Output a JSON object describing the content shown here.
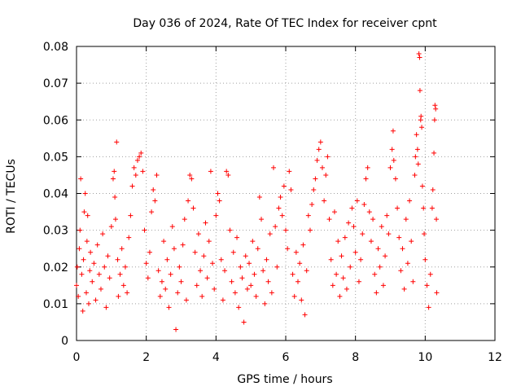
{
  "chart_data": {
    "type": "scatter",
    "title": "Day 036 of 2024, Rate Of TEC Index for receiver cpnt",
    "xlabel": "GPS time / hours",
    "ylabel": "ROTI / TECUs",
    "xlim": [
      0,
      12
    ],
    "ylim": [
      0,
      0.08
    ],
    "x_ticks": [
      "0",
      "2",
      "4",
      "6",
      "8",
      "10",
      "12"
    ],
    "y_ticks": [
      "0",
      "0.01",
      "0.02",
      "0.03",
      "0.04",
      "0.05",
      "0.06",
      "0.07",
      "0.08"
    ],
    "grid": true,
    "marker": "+",
    "color": "#ff0000",
    "series": [
      {
        "name": "ROTI",
        "points": [
          [
            0.0,
            0.015
          ],
          [
            0.02,
            0.02
          ],
          [
            0.05,
            0.012
          ],
          [
            0.08,
            0.025
          ],
          [
            0.1,
            0.03
          ],
          [
            0.12,
            0.044
          ],
          [
            0.15,
            0.018
          ],
          [
            0.18,
            0.008
          ],
          [
            0.2,
            0.022
          ],
          [
            0.22,
            0.035
          ],
          [
            0.25,
            0.04
          ],
          [
            0.28,
            0.013
          ],
          [
            0.3,
            0.027
          ],
          [
            0.32,
            0.034
          ],
          [
            0.35,
            0.01
          ],
          [
            0.38,
            0.019
          ],
          [
            0.4,
            0.024
          ],
          [
            0.45,
            0.016
          ],
          [
            0.5,
            0.021
          ],
          [
            0.55,
            0.011
          ],
          [
            0.6,
            0.026
          ],
          [
            0.65,
            0.018
          ],
          [
            0.7,
            0.014
          ],
          [
            0.75,
            0.029
          ],
          [
            0.8,
            0.02
          ],
          [
            0.85,
            0.009
          ],
          [
            0.9,
            0.023
          ],
          [
            0.95,
            0.017
          ],
          [
            1.0,
            0.031
          ],
          [
            1.05,
            0.044
          ],
          [
            1.08,
            0.046
          ],
          [
            1.1,
            0.039
          ],
          [
            1.12,
            0.033
          ],
          [
            1.15,
            0.054
          ],
          [
            1.18,
            0.022
          ],
          [
            1.2,
            0.012
          ],
          [
            1.25,
            0.018
          ],
          [
            1.3,
            0.025
          ],
          [
            1.35,
            0.015
          ],
          [
            1.4,
            0.02
          ],
          [
            1.45,
            0.013
          ],
          [
            1.5,
            0.028
          ],
          [
            1.55,
            0.034
          ],
          [
            1.6,
            0.042
          ],
          [
            1.65,
            0.047
          ],
          [
            1.7,
            0.045
          ],
          [
            1.75,
            0.049
          ],
          [
            1.8,
            0.05
          ],
          [
            1.85,
            0.051
          ],
          [
            1.9,
            0.046
          ],
          [
            1.95,
            0.03
          ],
          [
            2.0,
            0.021
          ],
          [
            2.05,
            0.017
          ],
          [
            2.1,
            0.024
          ],
          [
            2.15,
            0.035
          ],
          [
            2.2,
            0.041
          ],
          [
            2.25,
            0.038
          ],
          [
            2.3,
            0.045
          ],
          [
            2.35,
            0.019
          ],
          [
            2.4,
            0.012
          ],
          [
            2.45,
            0.016
          ],
          [
            2.5,
            0.027
          ],
          [
            2.55,
            0.014
          ],
          [
            2.6,
            0.022
          ],
          [
            2.65,
            0.009
          ],
          [
            2.7,
            0.018
          ],
          [
            2.75,
            0.031
          ],
          [
            2.8,
            0.025
          ],
          [
            2.85,
            0.003
          ],
          [
            2.9,
            0.013
          ],
          [
            2.95,
            0.02
          ],
          [
            3.0,
            0.016
          ],
          [
            3.05,
            0.026
          ],
          [
            3.1,
            0.033
          ],
          [
            3.15,
            0.011
          ],
          [
            3.2,
            0.038
          ],
          [
            3.25,
            0.045
          ],
          [
            3.3,
            0.044
          ],
          [
            3.35,
            0.036
          ],
          [
            3.4,
            0.024
          ],
          [
            3.45,
            0.015
          ],
          [
            3.5,
            0.029
          ],
          [
            3.55,
            0.019
          ],
          [
            3.6,
            0.012
          ],
          [
            3.65,
            0.023
          ],
          [
            3.7,
            0.032
          ],
          [
            3.75,
            0.017
          ],
          [
            3.8,
            0.027
          ],
          [
            3.85,
            0.046
          ],
          [
            3.9,
            0.021
          ],
          [
            3.95,
            0.014
          ],
          [
            4.0,
            0.034
          ],
          [
            4.05,
            0.04
          ],
          [
            4.1,
            0.038
          ],
          [
            4.15,
            0.022
          ],
          [
            4.2,
            0.011
          ],
          [
            4.25,
            0.019
          ],
          [
            4.3,
            0.046
          ],
          [
            4.35,
            0.045
          ],
          [
            4.4,
            0.03
          ],
          [
            4.45,
            0.016
          ],
          [
            4.5,
            0.024
          ],
          [
            4.55,
            0.013
          ],
          [
            4.6,
            0.028
          ],
          [
            4.65,
            0.009
          ],
          [
            4.7,
            0.02
          ],
          [
            4.75,
            0.017
          ],
          [
            4.8,
            0.005
          ],
          [
            4.85,
            0.023
          ],
          [
            4.9,
            0.014
          ],
          [
            4.95,
            0.021
          ],
          [
            5.0,
            0.015
          ],
          [
            5.05,
            0.027
          ],
          [
            5.1,
            0.018
          ],
          [
            5.15,
            0.012
          ],
          [
            5.2,
            0.025
          ],
          [
            5.25,
            0.039
          ],
          [
            5.3,
            0.033
          ],
          [
            5.35,
            0.019
          ],
          [
            5.4,
            0.01
          ],
          [
            5.45,
            0.022
          ],
          [
            5.5,
            0.016
          ],
          [
            5.55,
            0.029
          ],
          [
            5.6,
            0.013
          ],
          [
            5.65,
            0.047
          ],
          [
            5.7,
            0.031
          ],
          [
            5.75,
            0.02
          ],
          [
            5.8,
            0.036
          ],
          [
            5.85,
            0.039
          ],
          [
            5.9,
            0.034
          ],
          [
            5.95,
            0.042
          ],
          [
            6.0,
            0.03
          ],
          [
            6.05,
            0.025
          ],
          [
            6.1,
            0.046
          ],
          [
            6.15,
            0.041
          ],
          [
            6.2,
            0.018
          ],
          [
            6.25,
            0.012
          ],
          [
            6.3,
            0.024
          ],
          [
            6.35,
            0.016
          ],
          [
            6.4,
            0.021
          ],
          [
            6.45,
            0.011
          ],
          [
            6.5,
            0.026
          ],
          [
            6.55,
            0.007
          ],
          [
            6.6,
            0.019
          ],
          [
            6.65,
            0.034
          ],
          [
            6.7,
            0.03
          ],
          [
            6.75,
            0.037
          ],
          [
            6.8,
            0.041
          ],
          [
            6.85,
            0.044
          ],
          [
            6.9,
            0.049
          ],
          [
            6.95,
            0.052
          ],
          [
            7.0,
            0.054
          ],
          [
            7.05,
            0.047
          ],
          [
            7.1,
            0.038
          ],
          [
            7.15,
            0.045
          ],
          [
            7.2,
            0.05
          ],
          [
            7.25,
            0.033
          ],
          [
            7.3,
            0.022
          ],
          [
            7.35,
            0.015
          ],
          [
            7.4,
            0.035
          ],
          [
            7.45,
            0.018
          ],
          [
            7.5,
            0.027
          ],
          [
            7.55,
            0.012
          ],
          [
            7.6,
            0.023
          ],
          [
            7.65,
            0.017
          ],
          [
            7.7,
            0.028
          ],
          [
            7.75,
            0.014
          ],
          [
            7.8,
            0.032
          ],
          [
            7.85,
            0.02
          ],
          [
            7.9,
            0.036
          ],
          [
            7.95,
            0.031
          ],
          [
            8.0,
            0.024
          ],
          [
            8.05,
            0.038
          ],
          [
            8.1,
            0.016
          ],
          [
            8.15,
            0.022
          ],
          [
            8.2,
            0.029
          ],
          [
            8.25,
            0.037
          ],
          [
            8.3,
            0.044
          ],
          [
            8.35,
            0.047
          ],
          [
            8.4,
            0.035
          ],
          [
            8.45,
            0.027
          ],
          [
            8.5,
            0.033
          ],
          [
            8.55,
            0.018
          ],
          [
            8.6,
            0.013
          ],
          [
            8.65,
            0.025
          ],
          [
            8.7,
            0.02
          ],
          [
            8.75,
            0.031
          ],
          [
            8.8,
            0.015
          ],
          [
            8.85,
            0.023
          ],
          [
            8.9,
            0.034
          ],
          [
            8.95,
            0.029
          ],
          [
            9.0,
            0.047
          ],
          [
            9.05,
            0.052
          ],
          [
            9.08,
            0.057
          ],
          [
            9.1,
            0.049
          ],
          [
            9.15,
            0.044
          ],
          [
            9.2,
            0.036
          ],
          [
            9.25,
            0.028
          ],
          [
            9.3,
            0.019
          ],
          [
            9.35,
            0.025
          ],
          [
            9.4,
            0.014
          ],
          [
            9.45,
            0.033
          ],
          [
            9.5,
            0.021
          ],
          [
            9.55,
            0.038
          ],
          [
            9.6,
            0.027
          ],
          [
            9.65,
            0.016
          ],
          [
            9.7,
            0.045
          ],
          [
            9.72,
            0.05
          ],
          [
            9.75,
            0.056
          ],
          [
            9.78,
            0.052
          ],
          [
            9.8,
            0.048
          ],
          [
            9.82,
            0.078
          ],
          [
            9.84,
            0.077
          ],
          [
            9.85,
            0.068
          ],
          [
            9.87,
            0.06
          ],
          [
            9.88,
            0.061
          ],
          [
            9.9,
            0.058
          ],
          [
            9.92,
            0.042
          ],
          [
            9.95,
            0.036
          ],
          [
            9.97,
            0.029
          ],
          [
            10.0,
            0.022
          ],
          [
            10.05,
            0.015
          ],
          [
            10.1,
            0.009
          ],
          [
            10.15,
            0.018
          ],
          [
            10.2,
            0.036
          ],
          [
            10.22,
            0.041
          ],
          [
            10.25,
            0.051
          ],
          [
            10.27,
            0.06
          ],
          [
            10.28,
            0.064
          ],
          [
            10.3,
            0.063
          ],
          [
            10.32,
            0.033
          ],
          [
            10.33,
            0.013
          ]
        ]
      }
    ]
  }
}
